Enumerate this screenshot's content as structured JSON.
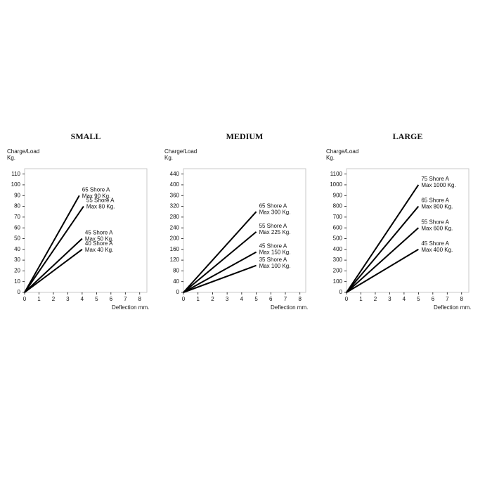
{
  "chart_data": [
    {
      "type": "line",
      "title": "SMALL",
      "ylabel": "Charge/Load",
      "yunit": "Kg.",
      "xlabel": "Deflection mm.",
      "xlim": [
        0,
        8.5
      ],
      "xticks": [
        0,
        1,
        2,
        3,
        4,
        5,
        6,
        7,
        8
      ],
      "ylim": [
        0,
        115
      ],
      "yticks": [
        0,
        10,
        20,
        30,
        40,
        50,
        60,
        70,
        80,
        90,
        100,
        110
      ],
      "series": [
        {
          "name": "65 Shore A",
          "label": "Max 90 Kg.",
          "color": "#000000",
          "x": [
            0,
            3.8
          ],
          "values": [
            0,
            90
          ]
        },
        {
          "name": "55 Shore A",
          "label": "Max 80 Kg.",
          "color": "#000000",
          "x": [
            0,
            4.1
          ],
          "values": [
            0,
            80
          ]
        },
        {
          "name": "45 Shore A",
          "label": "Max 50 Kg.",
          "color": "#000000",
          "x": [
            0,
            4
          ],
          "values": [
            0,
            50
          ]
        },
        {
          "name": "40 Shore A",
          "label": "Max 40 Kg.",
          "color": "#000000",
          "x": [
            0,
            4
          ],
          "values": [
            0,
            40
          ]
        }
      ]
    },
    {
      "type": "line",
      "title": "MEDIUM",
      "ylabel": "Charge/Load",
      "yunit": "Kg.",
      "xlabel": "Deflection mm.",
      "xlim": [
        0,
        8.4
      ],
      "xticks": [
        0,
        1,
        2,
        3,
        4,
        5,
        6,
        7,
        8
      ],
      "ylim": [
        0,
        460
      ],
      "yticks": [
        0,
        40,
        80,
        120,
        160,
        200,
        240,
        280,
        320,
        360,
        400,
        440
      ],
      "series": [
        {
          "name": "65 Shore A",
          "label": "Max 300 Kg.",
          "color": "#000000",
          "x": [
            0,
            5
          ],
          "values": [
            0,
            300
          ]
        },
        {
          "name": "55 Shore A",
          "label": "Max 225 Kg.",
          "color": "#000000",
          "x": [
            0,
            5
          ],
          "values": [
            0,
            225
          ]
        },
        {
          "name": "45 Shore A",
          "label": "Max 150 Kg.",
          "color": "#000000",
          "x": [
            0,
            5
          ],
          "values": [
            0,
            150
          ]
        },
        {
          "name": "35 Shore A",
          "label": "Max 100 Kg.",
          "color": "#000000",
          "x": [
            0,
            5
          ],
          "values": [
            0,
            100
          ]
        }
      ]
    },
    {
      "type": "line",
      "title": "LARGE",
      "ylabel": "Charge/Load",
      "yunit": "Kg.",
      "xlabel": "Deflection mm.",
      "xlim": [
        0,
        8.5
      ],
      "xticks": [
        0,
        1,
        2,
        3,
        4,
        5,
        6,
        7,
        8
      ],
      "ylim": [
        0,
        1150
      ],
      "yticks": [
        0,
        100,
        200,
        300,
        400,
        500,
        600,
        700,
        800,
        900,
        1000,
        1100
      ],
      "series": [
        {
          "name": "75 Shore A",
          "label": "Max 1000 Kg.",
          "color": "#000000",
          "x": [
            0,
            5
          ],
          "values": [
            0,
            1000
          ]
        },
        {
          "name": "65 Shore A",
          "label": "Max 800 Kg.",
          "color": "#000000",
          "x": [
            0,
            5
          ],
          "values": [
            0,
            800
          ]
        },
        {
          "name": "55 Shore A",
          "label": "Max 600 Kg.",
          "color": "#000000",
          "x": [
            0,
            5
          ],
          "values": [
            0,
            600
          ]
        },
        {
          "name": "45 Shore A",
          "label": "Max 400 Kg.",
          "color": "#000000",
          "x": [
            0,
            5
          ],
          "values": [
            0,
            400
          ]
        }
      ]
    }
  ]
}
